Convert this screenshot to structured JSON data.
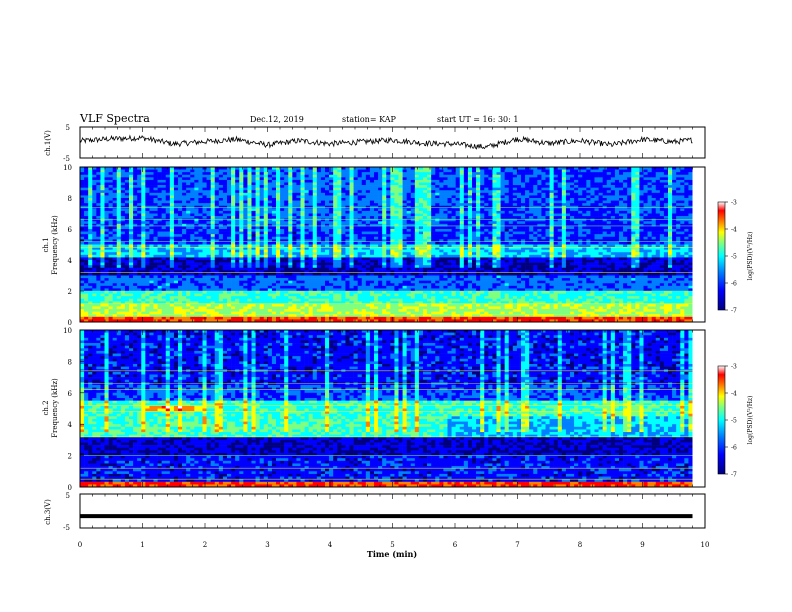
{
  "header": {
    "title": "VLF Spectra",
    "date": "Dec.12, 2019",
    "station": "station= KAP",
    "start": "start  UT =   16: 30: 1"
  },
  "colors": {
    "colormap": [
      "#00007f",
      "#0000ff",
      "#007fff",
      "#00ffff",
      "#7fff7f",
      "#ffff00",
      "#ff7f00",
      "#ff0000",
      "#ffffff"
    ],
    "trace": "#000000"
  },
  "chart_data": [
    {
      "type": "line",
      "panel": "ch1-voltage",
      "ylabel": "ch.1(V)",
      "ylim": [
        -5,
        5
      ],
      "yticks": [
        "5",
        "-5"
      ],
      "xlim": [
        0,
        10
      ],
      "description_of_series": "noisy voltage trace oscillating roughly between -2 and 2 V",
      "x": [
        0,
        0.5,
        1,
        1.5,
        2,
        2.5,
        3,
        3.5,
        4,
        4.5,
        5,
        5.5,
        6,
        6.5,
        7,
        7.5,
        8,
        8.5,
        9,
        9.5,
        9.8
      ],
      "y": [
        0.5,
        1.2,
        1.5,
        -0.5,
        0.3,
        1.0,
        -0.8,
        0.6,
        -0.4,
        0.2,
        0.8,
        -0.2,
        -0.5,
        -1.5,
        1.2,
        -0.3,
        0.6,
        -0.8,
        1.0,
        0.2,
        0.8
      ]
    },
    {
      "type": "heatmap",
      "panel": "ch1-spectrogram",
      "ylabel": "ch.1\nFrequency (kHz)",
      "ylim": [
        0,
        10
      ],
      "yticks": [
        "0",
        "2",
        "4",
        "6",
        "8",
        "10"
      ],
      "xlim": [
        0,
        10
      ],
      "colorbar": {
        "label": "log(PSD)(V²/Hz)",
        "range": [
          -7,
          -3
        ],
        "ticks": [
          "-3",
          "-4",
          "-5",
          "-6",
          "-7"
        ]
      }
    },
    {
      "type": "heatmap",
      "panel": "ch2-spectrogram",
      "ylabel": "ch.2\nFrequency (kHz)",
      "ylim": [
        0,
        10
      ],
      "yticks": [
        "0",
        "2",
        "4",
        "6",
        "8",
        "10"
      ],
      "xlim": [
        0,
        10
      ],
      "colorbar": {
        "label": "log(PSD)(V²/Hz)",
        "range": [
          -7,
          -3
        ],
        "ticks": [
          "-3",
          "-4",
          "-5",
          "-6",
          "-7"
        ]
      }
    },
    {
      "type": "line",
      "panel": "ch3-voltage",
      "ylabel": "ch.3(V)",
      "ylim": [
        -5,
        5
      ],
      "yticks": [
        "5",
        "-5"
      ],
      "xlim": [
        0,
        10
      ],
      "x": [
        0,
        9.8
      ],
      "y": [
        -1.5,
        -1.5
      ]
    }
  ],
  "xaxis": {
    "label": "Time (min)",
    "ticks": [
      "0",
      "1",
      "2",
      "3",
      "4",
      "5",
      "6",
      "7",
      "8",
      "9",
      "10"
    ]
  }
}
